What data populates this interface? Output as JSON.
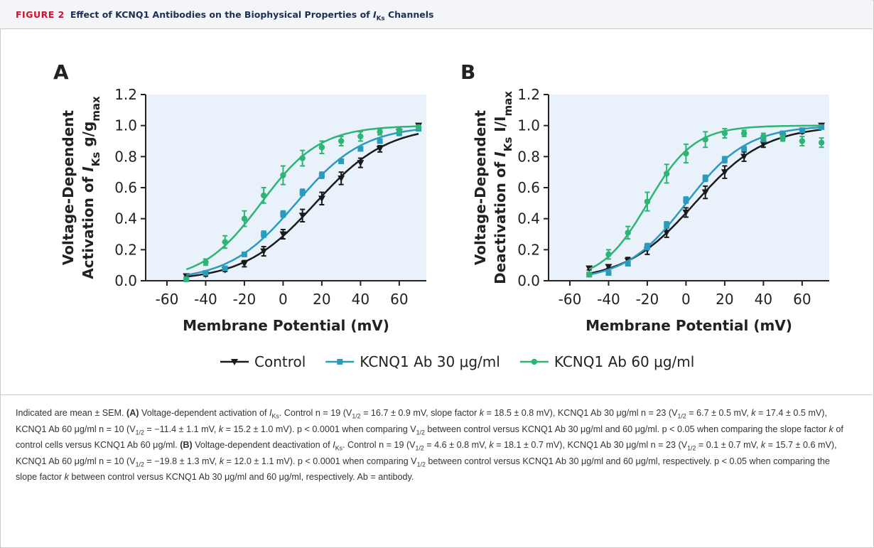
{
  "figure_label": "FIGURE 2",
  "figure_title": [
    "Effect of KCNQ1 Antibodies on the Biophysical Properties of ",
    {
      "text": "I",
      "style": "i"
    },
    {
      "text": "Ks",
      "style": "sub"
    },
    " Channels"
  ],
  "chart_data": [
    {
      "type": "line",
      "panel": "A",
      "ylabel": {
        "line1": "Voltage-Dependent",
        "line2": [
          "Activation of ",
          {
            "text": "I",
            "style": "i"
          },
          {
            "text": "Ks",
            "style": "sub"
          },
          " g/g",
          {
            "text": "max",
            "style": "sub"
          }
        ]
      },
      "xlabel": "Membrane Potential (mV)",
      "xlim": [
        -71,
        74
      ],
      "xticks": [
        -60,
        -40,
        -20,
        0,
        20,
        40,
        60
      ],
      "ylim": [
        0,
        1.2
      ],
      "yticks": [
        {
          "value": 0,
          "label": "0.0"
        },
        {
          "value": 0.2,
          "label": "0.2"
        },
        {
          "value": 0.4,
          "label": "0.4"
        },
        {
          "value": 0.6,
          "label": "0.6"
        },
        {
          "value": 0.8,
          "label": "0.8"
        },
        {
          "value": 1.0,
          "label": "1.0"
        },
        {
          "value": 1.2,
          "label": "1.2"
        }
      ],
      "x": [
        -50,
        -40,
        -30,
        -20,
        -10,
        0,
        10,
        20,
        30,
        40,
        50,
        60,
        70
      ],
      "series": [
        {
          "name": "Control",
          "color": "#1a1a1a",
          "marker": "triangle-down",
          "v_half": 16.7,
          "k": 18.5,
          "values": [
            0.03,
            0.04,
            0.07,
            0.11,
            0.19,
            0.3,
            0.42,
            0.53,
            0.66,
            0.76,
            0.85,
            0.96,
            1.0
          ],
          "errors": [
            0.01,
            0.01,
            0.01,
            0.02,
            0.03,
            0.03,
            0.04,
            0.04,
            0.04,
            0.03,
            0.02,
            0.01,
            0.01
          ]
        },
        {
          "name": "KCNQ1 Ab 30 μg/ml",
          "color": "#2a9bbd",
          "marker": "square",
          "v_half": 6.7,
          "k": 17.4,
          "values": [
            0.01,
            0.05,
            0.08,
            0.17,
            0.3,
            0.43,
            0.57,
            0.68,
            0.77,
            0.85,
            0.9,
            0.95,
            0.98
          ],
          "errors": [
            0.01,
            0.01,
            0.01,
            0.01,
            0.02,
            0.02,
            0.02,
            0.02,
            0.01,
            0.01,
            0.01,
            0.01,
            0.01
          ]
        },
        {
          "name": "KCNQ1 Ab 60 μg/ml",
          "color": "#2cb574",
          "marker": "circle",
          "v_half": -11.4,
          "k": 15.2,
          "values": [
            0.01,
            0.12,
            0.25,
            0.4,
            0.55,
            0.68,
            0.79,
            0.86,
            0.9,
            0.93,
            0.96,
            0.97,
            0.99
          ],
          "errors": [
            0.01,
            0.02,
            0.04,
            0.05,
            0.05,
            0.06,
            0.05,
            0.04,
            0.03,
            0.03,
            0.02,
            0.02,
            0.01
          ]
        }
      ]
    },
    {
      "type": "line",
      "panel": "B",
      "ylabel": {
        "line1": "Voltage-Dependent",
        "line2": [
          "Deactivation of ",
          {
            "text": "I",
            "style": "i"
          },
          {
            "text": "Ks",
            "style": "sub"
          },
          " I/I",
          {
            "text": "max",
            "style": "sub"
          }
        ]
      },
      "xlabel": "Membrane Potential (mV)",
      "xlim": [
        -71,
        74
      ],
      "xticks": [
        -60,
        -40,
        -20,
        0,
        20,
        40,
        60
      ],
      "ylim": [
        0,
        1.2
      ],
      "yticks": [
        {
          "value": 0,
          "label": "0.0"
        },
        {
          "value": 0.2,
          "label": "0.2"
        },
        {
          "value": 0.4,
          "label": "0.4"
        },
        {
          "value": 0.6,
          "label": "0.6"
        },
        {
          "value": 0.8,
          "label": "0.8"
        },
        {
          "value": 1.0,
          "label": "1.0"
        },
        {
          "value": 1.2,
          "label": "1.2"
        }
      ],
      "x": [
        -50,
        -40,
        -30,
        -20,
        -10,
        0,
        10,
        20,
        30,
        40,
        50,
        60,
        70
      ],
      "series": [
        {
          "color": "#1a1a1a",
          "marker": "triangle-down",
          "v_half": 4.6,
          "k": 18.1,
          "values": [
            0.08,
            0.09,
            0.13,
            0.2,
            0.31,
            0.44,
            0.57,
            0.7,
            0.8,
            0.88,
            0.93,
            0.96,
            1.0
          ],
          "errors": [
            0.01,
            0.01,
            0.02,
            0.03,
            0.03,
            0.03,
            0.04,
            0.04,
            0.03,
            0.02,
            0.02,
            0.01,
            0.01
          ]
        },
        {
          "color": "#2a9bbd",
          "marker": "square",
          "v_half": 0.1,
          "k": 15.7,
          "values": [
            0.04,
            0.05,
            0.11,
            0.22,
            0.36,
            0.52,
            0.66,
            0.78,
            0.85,
            0.91,
            0.95,
            0.97,
            0.99
          ],
          "errors": [
            0.01,
            0.01,
            0.01,
            0.02,
            0.02,
            0.02,
            0.02,
            0.02,
            0.01,
            0.01,
            0.01,
            0.01,
            0.01
          ]
        },
        {
          "color": "#2cb574",
          "marker": "circle",
          "v_half": -19.8,
          "k": 12.0,
          "values": [
            0.04,
            0.17,
            0.31,
            0.51,
            0.69,
            0.82,
            0.91,
            0.95,
            0.95,
            0.93,
            0.92,
            0.9,
            0.89
          ],
          "errors": [
            0.01,
            0.03,
            0.04,
            0.06,
            0.06,
            0.06,
            0.05,
            0.03,
            0.02,
            0.02,
            0.02,
            0.03,
            0.03
          ]
        }
      ]
    }
  ],
  "caption": [
    "Indicated are mean ± SEM. ",
    {
      "text": "(A)",
      "style": "b"
    },
    " Voltage-dependent activation of ",
    {
      "text": "I",
      "style": "i"
    },
    {
      "text": "Ks",
      "style": "sub"
    },
    ". Control n = 19 (V",
    {
      "text": "1/2",
      "style": "sub"
    },
    " = 16.7 ± 0.9 mV, slope factor ",
    {
      "text": "k",
      "style": "i"
    },
    " = 18.5 ± 0.8 mV), KCNQ1 Ab 30 μg/ml n = 23 (V",
    {
      "text": "1/2",
      "style": "sub"
    },
    " = 6.7 ± 0.5 mV, ",
    {
      "text": "k",
      "style": "i"
    },
    " = 17.4 ± 0.5 mV), KCNQ1 Ab 60 μg/ml n = 10 (V",
    {
      "text": "1/2",
      "style": "sub"
    },
    " = −11.4 ± 1.1 mV, ",
    {
      "text": "k",
      "style": "i"
    },
    " = 15.2 ± 1.0 mV). p < 0.0001 when comparing V",
    {
      "text": "1/2",
      "style": "sub"
    },
    " between control versus KCNQ1 Ab 30 μg/ml and 60 μg/ml. p < 0.05 when comparing the slope factor ",
    {
      "text": "k",
      "style": "i"
    },
    " of control cells versus KCNQ1 Ab 60 μg/ml. ",
    {
      "text": "(B)",
      "style": "b"
    },
    " Voltage-dependent deactivation of ",
    {
      "text": "I",
      "style": "i"
    },
    {
      "text": "Ks",
      "style": "sub"
    },
    ". Control n = 19 (V",
    {
      "text": "1/2",
      "style": "sub"
    },
    " = 4.6 ± 0.8 mV, ",
    {
      "text": "k",
      "style": "i"
    },
    " = 18.1 ± 0.7 mV), KCNQ1 Ab 30 μg/ml n = 23 (V",
    {
      "text": "1/2",
      "style": "sub"
    },
    " = 0.1 ± 0.7 mV, ",
    {
      "text": "k",
      "style": "i"
    },
    " = 15.7 ± 0.6 mV), KCNQ1 Ab 60 μg/ml n = 10 (V",
    {
      "text": "1/2",
      "style": "sub"
    },
    " = −19.8 ± 1.3 mV, ",
    {
      "text": "k",
      "style": "i"
    },
    " = 12.0 ± 1.1 mV). p < 0.0001 when comparing V",
    {
      "text": "1/2",
      "style": "sub"
    },
    " between control versus KCNQ1 Ab 30 μg/ml and 60 μg/ml, respectively. p < 0.05 when comparing the slope factor ",
    {
      "text": "k",
      "style": "i"
    },
    " between control versus KCNQ1 Ab 30 μg/ml and 60 μg/ml, respectively. Ab = antibody."
  ]
}
